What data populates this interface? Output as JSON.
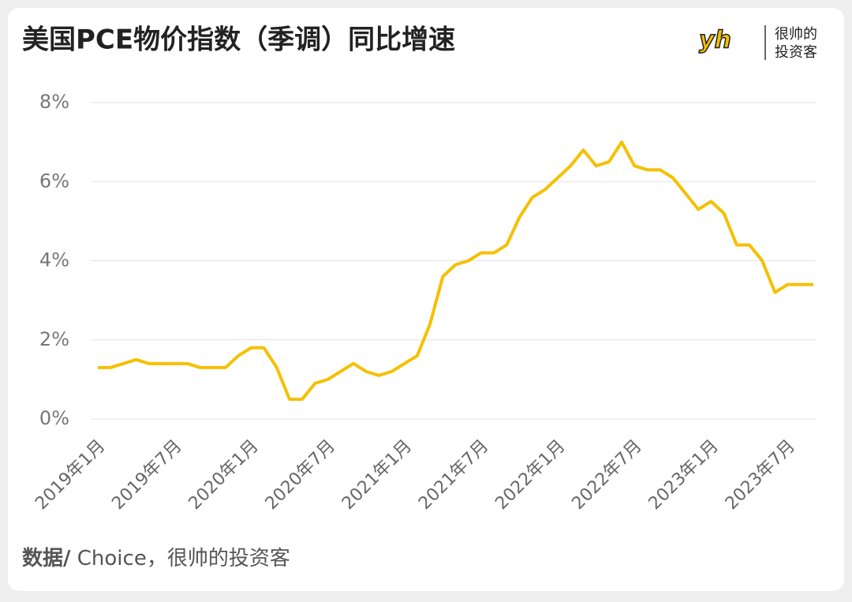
{
  "header": {
    "title": "美国PCE物价指数（季调）同比增速",
    "logo_mark": "yh",
    "logo_line1": "很帅的",
    "logo_line2": "投资客"
  },
  "footer": {
    "source_label": "数据/",
    "source_text": " Choice，很帅的投资客"
  },
  "chart_data": {
    "type": "line",
    "categories": [
      "2019年1月",
      null,
      null,
      null,
      null,
      null,
      "2019年7月",
      null,
      null,
      null,
      null,
      null,
      "2020年1月",
      null,
      null,
      null,
      null,
      null,
      "2020年7月",
      null,
      null,
      null,
      null,
      null,
      "2021年1月",
      null,
      null,
      null,
      null,
      null,
      "2021年7月",
      null,
      null,
      null,
      null,
      null,
      "2022年1月",
      null,
      null,
      null,
      null,
      null,
      "2022年7月",
      null,
      null,
      null,
      null,
      null,
      "2023年1月",
      null,
      null,
      null,
      null,
      null,
      "2023年7月",
      null,
      null
    ],
    "series": [
      {
        "color": "#f5c000",
        "values": [
          1.3,
          1.3,
          1.4,
          1.5,
          1.4,
          1.4,
          1.4,
          1.4,
          1.3,
          1.3,
          1.3,
          1.6,
          1.8,
          1.8,
          1.3,
          0.5,
          0.5,
          0.9,
          1.0,
          1.2,
          1.4,
          1.2,
          1.1,
          1.2,
          1.4,
          1.6,
          2.4,
          3.6,
          3.9,
          4.0,
          4.2,
          4.2,
          4.4,
          5.1,
          5.6,
          5.8,
          6.1,
          6.4,
          6.8,
          6.4,
          6.5,
          7.0,
          6.4,
          6.3,
          6.3,
          6.1,
          5.7,
          5.3,
          5.5,
          5.2,
          4.4,
          4.4,
          4.0,
          3.2,
          3.4,
          3.4,
          3.4
        ]
      }
    ],
    "ylim": [
      0,
      8
    ],
    "yticks": [
      {
        "value": 0,
        "label": "0%"
      },
      {
        "value": 2,
        "label": "2%"
      },
      {
        "value": 4,
        "label": "4%"
      },
      {
        "value": 6,
        "label": "6%"
      },
      {
        "value": 8,
        "label": "8%"
      }
    ],
    "grid": true
  }
}
